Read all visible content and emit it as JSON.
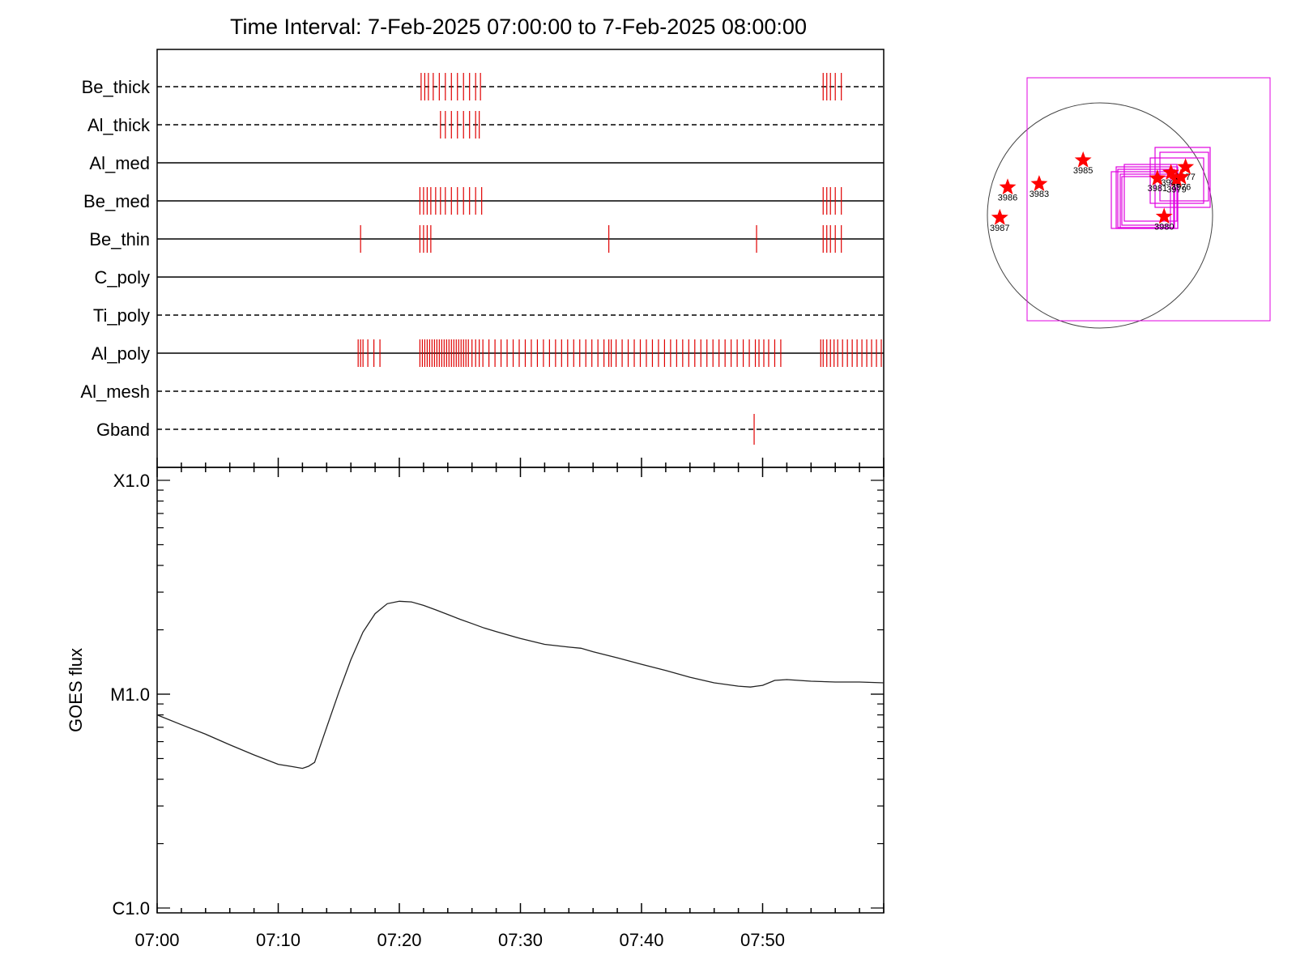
{
  "chart_data": {
    "title": "Time Interval:  7-Feb-2025 07:00:00 to  7-Feb-2025 08:00:00",
    "channels": {
      "type": "event-raster",
      "rows": [
        {
          "name": "Be_thick",
          "line": "dashed",
          "events": [
            21.8,
            22.1,
            22.4,
            22.8,
            23.3,
            23.8,
            24.3,
            24.8,
            25.3,
            25.8,
            26.3,
            26.7,
            55.0,
            55.3,
            55.6,
            56.0,
            56.5
          ]
        },
        {
          "name": "Al_thick",
          "line": "dashed",
          "events": [
            23.4,
            23.8,
            24.3,
            24.8,
            25.3,
            25.8,
            26.3,
            26.6
          ]
        },
        {
          "name": "Al_med",
          "line": "solid",
          "events": []
        },
        {
          "name": "Be_med",
          "line": "solid",
          "events": [
            21.7,
            22.0,
            22.3,
            22.6,
            23.0,
            23.4,
            23.8,
            24.3,
            24.8,
            25.3,
            25.8,
            26.3,
            26.8,
            55.0,
            55.3,
            55.6,
            56.0,
            56.5
          ]
        },
        {
          "name": "Be_thin",
          "line": "solid",
          "events": [
            16.8,
            21.7,
            22.0,
            22.3,
            22.6,
            37.3,
            49.5,
            55.0,
            55.3,
            55.6,
            56.0,
            56.5
          ]
        },
        {
          "name": "C_poly",
          "line": "solid",
          "events": []
        },
        {
          "name": "Ti_poly",
          "line": "dashed",
          "events": []
        },
        {
          "name": "Al_poly",
          "line": "solid",
          "events": [
            16.6,
            16.8,
            17.0,
            17.4,
            17.9,
            18.4,
            21.7,
            21.9,
            22.1,
            22.3,
            22.5,
            22.7,
            22.9,
            23.1,
            23.3,
            23.5,
            23.7,
            23.9,
            24.1,
            24.3,
            24.5,
            24.7,
            24.9,
            25.1,
            25.3,
            25.5,
            25.7,
            26.0,
            26.3,
            26.6,
            26.9,
            27.4,
            27.9,
            28.4,
            28.9,
            29.4,
            29.9,
            30.4,
            30.9,
            31.4,
            31.9,
            32.4,
            32.9,
            33.4,
            33.9,
            34.4,
            34.9,
            35.4,
            35.9,
            36.4,
            36.9,
            37.3,
            37.5,
            37.9,
            38.4,
            38.9,
            39.4,
            39.9,
            40.4,
            40.9,
            41.4,
            41.9,
            42.4,
            42.9,
            43.4,
            43.9,
            44.4,
            44.9,
            45.4,
            45.9,
            46.4,
            46.9,
            47.4,
            47.9,
            48.4,
            48.9,
            49.4,
            49.7,
            50.1,
            50.5,
            51.0,
            51.5,
            54.8,
            55.0,
            55.3,
            55.6,
            55.9,
            56.2,
            56.6,
            57.0,
            57.4,
            57.8,
            58.2,
            58.6,
            59.0,
            59.4,
            59.8
          ]
        },
        {
          "name": "Al_mesh",
          "line": "dashed",
          "events": []
        },
        {
          "name": "Gband",
          "line": "dashed",
          "events": [
            49.3
          ]
        }
      ]
    },
    "goes": {
      "type": "line",
      "ylabel": "GOES flux",
      "yscale": "log",
      "ylim": [
        1e-06,
        0.0001
      ],
      "yticks": [
        {
          "v": 0.0001,
          "label": "X1.0"
        },
        {
          "v": 1e-05,
          "label": "M1.0"
        },
        {
          "v": 1e-06,
          "label": "C1.0"
        }
      ],
      "xlim": [
        0,
        60
      ],
      "xticks": [
        {
          "v": 0,
          "label": "07:00"
        },
        {
          "v": 10,
          "label": "07:10"
        },
        {
          "v": 20,
          "label": "07:20"
        },
        {
          "v": 30,
          "label": "07:30"
        },
        {
          "v": 40,
          "label": "07:40"
        },
        {
          "v": 50,
          "label": "07:50"
        }
      ],
      "series": [
        {
          "x": [
            0,
            2,
            4,
            6,
            8,
            10,
            11,
            12,
            12.5,
            13,
            14,
            15,
            16,
            17,
            18,
            19,
            20,
            21,
            22,
            23,
            24,
            25,
            26,
            27,
            28,
            30,
            32,
            34,
            35,
            36,
            38,
            40,
            42,
            44,
            46,
            48,
            49,
            49.5,
            50,
            51,
            52,
            54,
            56,
            58,
            60
          ],
          "y": [
            8e-06,
            7.2e-06,
            6.5e-06,
            5.8e-06,
            5.2e-06,
            4.7e-06,
            4.6e-06,
            4.5e-06,
            4.6e-06,
            4.8e-06,
            7e-06,
            1.02e-05,
            1.45e-05,
            1.95e-05,
            2.38e-05,
            2.65e-05,
            2.72e-05,
            2.7e-05,
            2.6e-05,
            2.48e-05,
            2.36e-05,
            2.24e-05,
            2.14e-05,
            2.04e-05,
            1.96e-05,
            1.82e-05,
            1.71e-05,
            1.66e-05,
            1.64e-05,
            1.58e-05,
            1.48e-05,
            1.38e-05,
            1.29e-05,
            1.2e-05,
            1.13e-05,
            1.09e-05,
            1.08e-05,
            1.09e-05,
            1.1e-05,
            1.16e-05,
            1.17e-05,
            1.15e-05,
            1.14e-05,
            1.14e-05,
            1.13e-05
          ]
        }
      ]
    },
    "solar_map": {
      "type": "scatter",
      "regions": [
        {
          "label": "3985",
          "x": -0.15,
          "y": 0.49
        },
        {
          "label": "3986",
          "x": -0.82,
          "y": 0.25
        },
        {
          "label": "3983",
          "x": -0.54,
          "y": 0.28
        },
        {
          "label": "3987",
          "x": -0.89,
          "y": -0.02
        },
        {
          "label": "3981",
          "x": 0.51,
          "y": 0.33
        },
        {
          "label": "3982",
          "x": 0.63,
          "y": 0.38
        },
        {
          "label": "3979",
          "x": 0.68,
          "y": 0.32
        },
        {
          "label": "3977",
          "x": 0.76,
          "y": 0.43
        },
        {
          "label": "3976",
          "x": 0.72,
          "y": 0.34
        },
        {
          "label": "3980",
          "x": 0.57,
          "y": -0.01
        }
      ]
    }
  }
}
